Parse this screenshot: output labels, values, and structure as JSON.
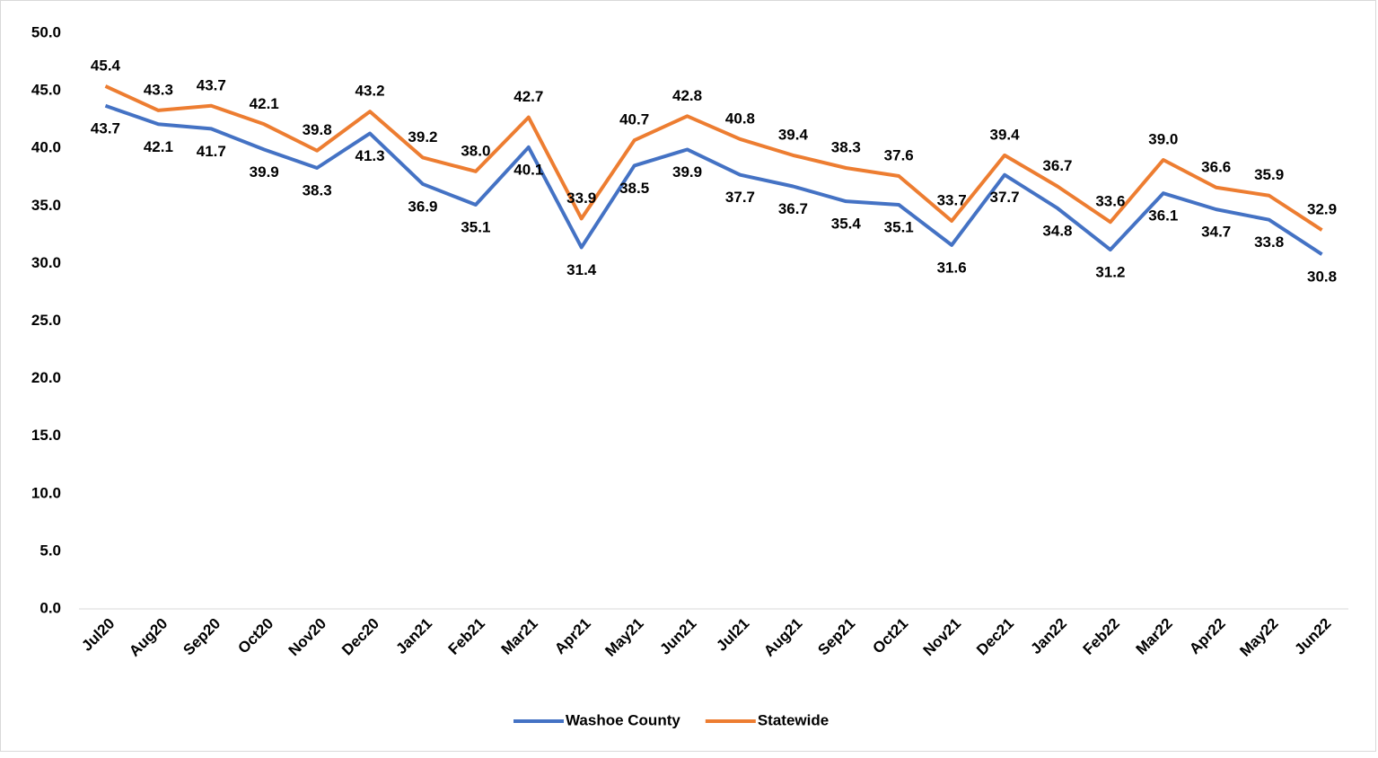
{
  "chart_data": {
    "type": "line",
    "categories": [
      "Jul20",
      "Aug20",
      "Sep20",
      "Oct20",
      "Nov20",
      "Dec20",
      "Jan21",
      "Feb21",
      "Mar21",
      "Apr21",
      "May21",
      "Jun21",
      "Jul21",
      "Aug21",
      "Sep21",
      "Oct21",
      "Nov21",
      "Dec21",
      "Jan22",
      "Feb22",
      "Mar22",
      "Apr22",
      "May22",
      "Jun22"
    ],
    "series": [
      {
        "name": "Washoe County",
        "color": "#4472c4",
        "values": [
          43.7,
          42.1,
          41.7,
          39.9,
          38.3,
          41.3,
          36.9,
          35.1,
          40.1,
          31.4,
          38.5,
          39.9,
          37.7,
          36.7,
          35.4,
          35.1,
          31.6,
          37.7,
          34.8,
          31.2,
          36.1,
          34.7,
          33.8,
          30.8
        ],
        "value_labels": [
          "43.7",
          "42.1",
          "41.7",
          "39.9",
          "38.3",
          "41.3",
          "36.9",
          "35.1",
          "40.1",
          "31.4",
          "38.5",
          "39.9",
          "37.7",
          "36.7",
          "35.4",
          "35.1",
          "31.6",
          "37.7",
          "34.8",
          "31.2",
          "36.1",
          "34.7",
          "33.8",
          "30.8"
        ]
      },
      {
        "name": "Statewide",
        "color": "#ed7d31",
        "values": [
          45.4,
          43.3,
          43.7,
          42.1,
          39.8,
          43.2,
          39.2,
          38.0,
          42.7,
          33.9,
          40.7,
          42.8,
          40.8,
          39.4,
          38.3,
          37.6,
          33.7,
          39.4,
          36.7,
          33.6,
          39.0,
          36.6,
          35.9,
          32.9
        ],
        "value_labels": [
          "45.4",
          "43.3",
          "43.7",
          "42.1",
          "39.8",
          "43.2",
          "39.2",
          "38.0",
          "42.7",
          "33.9",
          "40.7",
          "42.8",
          "40.8",
          "39.4",
          "38.3",
          "37.6",
          "33.7",
          "39.4",
          "36.7",
          "33.6",
          "39.0",
          "36.6",
          "35.9",
          "32.9"
        ]
      }
    ],
    "ylim": [
      0,
      50
    ],
    "yticks": [
      {
        "value": 0,
        "label": "0.0"
      },
      {
        "value": 5,
        "label": "5.0"
      },
      {
        "value": 10,
        "label": "10.0"
      },
      {
        "value": 15,
        "label": "15.0"
      },
      {
        "value": 20,
        "label": "20.0"
      },
      {
        "value": 25,
        "label": "25.0"
      },
      {
        "value": 30,
        "label": "30.0"
      },
      {
        "value": 35,
        "label": "35.0"
      },
      {
        "value": 40,
        "label": "40.0"
      },
      {
        "value": 45,
        "label": "45.0"
      },
      {
        "value": 50,
        "label": "50.0"
      }
    ],
    "grid": false,
    "legend": "bottom"
  }
}
